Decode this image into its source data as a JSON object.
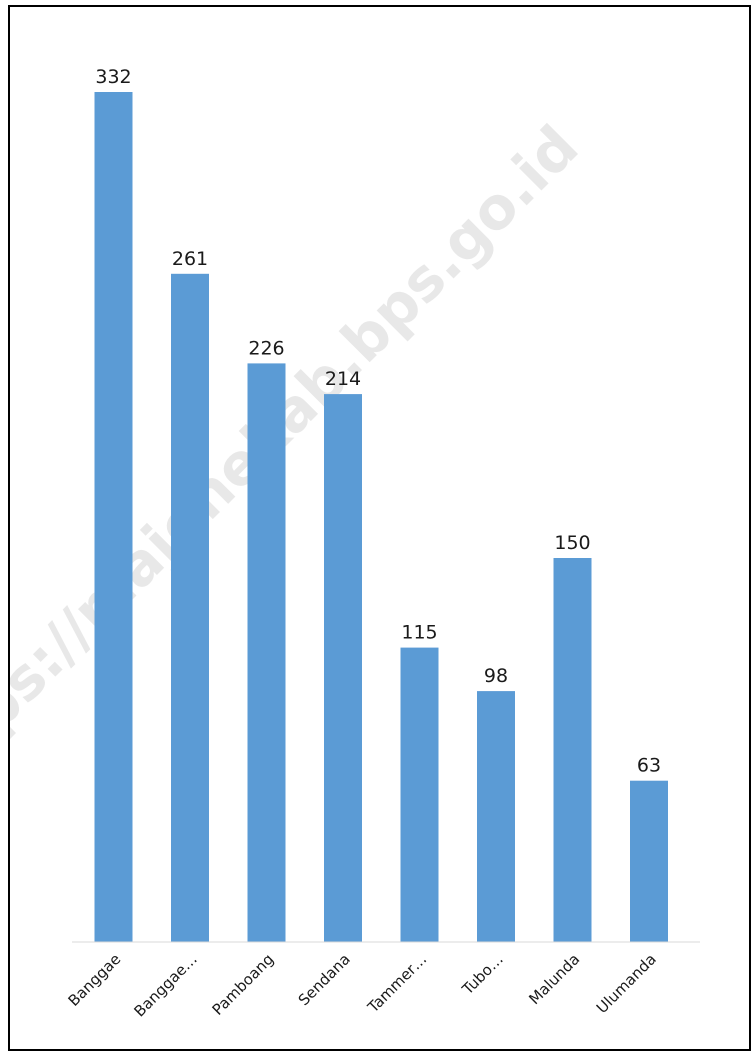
{
  "watermark": "https://majenekab.bps.go.id",
  "colors": {
    "bar": "#5b9bd5",
    "axis": "#d9d9d9",
    "text": "#1a1a1a"
  },
  "chart_data": {
    "type": "bar",
    "categories": [
      "Banggae",
      "Banggae…",
      "Pamboang",
      "Sendana",
      "Tammer…",
      "Tubo…",
      "Malunda",
      "Ulumanda"
    ],
    "values": [
      332,
      261,
      226,
      214,
      115,
      98,
      150,
      63
    ],
    "title": "",
    "xlabel": "",
    "ylabel": "",
    "ylim": [
      0,
      332
    ],
    "grid": false,
    "legend": "none",
    "data_labels": true
  }
}
